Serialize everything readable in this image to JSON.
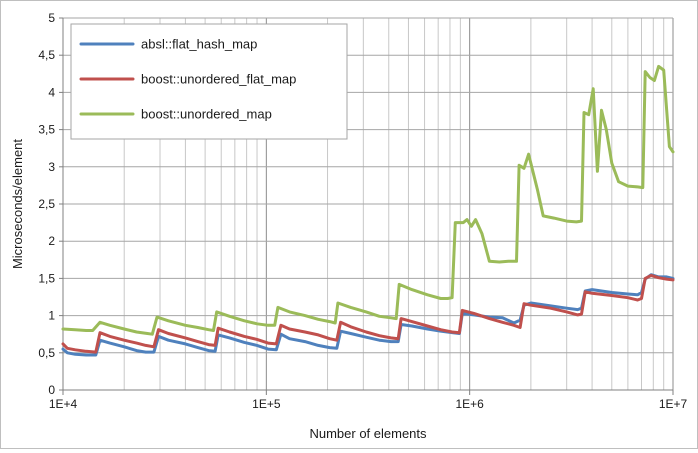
{
  "chart_data": {
    "type": "line",
    "title": "",
    "xlabel": "Number of elements",
    "ylabel": "Microseconds/element",
    "x_scale": "log",
    "xlim": [
      10000,
      10000000
    ],
    "ylim": [
      0,
      5
    ],
    "y_ticks": [
      0,
      0.5,
      1,
      1.5,
      2,
      2.5,
      3,
      3.5,
      4,
      4.5,
      5
    ],
    "y_tick_labels": [
      "0",
      "0,5",
      "1",
      "1,5",
      "2",
      "2,5",
      "3",
      "3,5",
      "4",
      "4,5",
      "5"
    ],
    "x_ticks": [
      10000,
      100000,
      1000000,
      10000000
    ],
    "x_tick_labels": [
      "1E+4",
      "1E+5",
      "1E+6",
      "1E+7"
    ],
    "grid": {
      "horizontal": true,
      "vertical_minor_log": true
    },
    "legend_position": "top-left",
    "series": [
      {
        "name": "absl::flat_hash_map",
        "color": "#4f81bd",
        "points": [
          [
            10000,
            0.55
          ],
          [
            10500,
            0.5
          ],
          [
            11500,
            0.48
          ],
          [
            13000,
            0.47
          ],
          [
            14500,
            0.47
          ],
          [
            15200,
            0.67
          ],
          [
            17000,
            0.63
          ],
          [
            20000,
            0.58
          ],
          [
            23000,
            0.53
          ],
          [
            25500,
            0.51
          ],
          [
            28000,
            0.51
          ],
          [
            29500,
            0.72
          ],
          [
            33000,
            0.67
          ],
          [
            40000,
            0.62
          ],
          [
            46000,
            0.57
          ],
          [
            52000,
            0.53
          ],
          [
            56000,
            0.52
          ],
          [
            58000,
            0.74
          ],
          [
            66000,
            0.7
          ],
          [
            78000,
            0.64
          ],
          [
            90000,
            0.6
          ],
          [
            102000,
            0.55
          ],
          [
            112000,
            0.54
          ],
          [
            118000,
            0.75
          ],
          [
            130000,
            0.69
          ],
          [
            155000,
            0.65
          ],
          [
            180000,
            0.6
          ],
          [
            205000,
            0.57
          ],
          [
            222000,
            0.56
          ],
          [
            232000,
            0.79
          ],
          [
            260000,
            0.76
          ],
          [
            310000,
            0.71
          ],
          [
            360000,
            0.67
          ],
          [
            410000,
            0.65
          ],
          [
            445000,
            0.65
          ],
          [
            460000,
            0.88
          ],
          [
            520000,
            0.86
          ],
          [
            620000,
            0.82
          ],
          [
            720000,
            0.79
          ],
          [
            820000,
            0.77
          ],
          [
            890000,
            0.76
          ],
          [
            920000,
            1.03
          ],
          [
            1050000,
            1.01
          ],
          [
            1250000,
            0.98
          ],
          [
            1450000,
            0.97
          ],
          [
            1650000,
            0.9
          ],
          [
            1770000,
            0.94
          ],
          [
            1850000,
            1.14
          ],
          [
            2000000,
            1.17
          ],
          [
            2500000,
            1.13
          ],
          [
            3000000,
            1.1
          ],
          [
            3400000,
            1.08
          ],
          [
            3550000,
            1.1
          ],
          [
            3700000,
            1.33
          ],
          [
            4000000,
            1.35
          ],
          [
            5000000,
            1.31
          ],
          [
            6000000,
            1.29
          ],
          [
            6700000,
            1.28
          ],
          [
            7000000,
            1.31
          ],
          [
            7300000,
            1.49
          ],
          [
            7800000,
            1.55
          ],
          [
            8500000,
            1.52
          ],
          [
            9300000,
            1.52
          ],
          [
            10000000,
            1.5
          ]
        ]
      },
      {
        "name": "boost::unordered_flat_map",
        "color": "#c0504d",
        "points": [
          [
            10000,
            0.62
          ],
          [
            10500,
            0.56
          ],
          [
            11500,
            0.54
          ],
          [
            13000,
            0.52
          ],
          [
            14500,
            0.51
          ],
          [
            15200,
            0.77
          ],
          [
            17000,
            0.72
          ],
          [
            20000,
            0.67
          ],
          [
            23000,
            0.63
          ],
          [
            25500,
            0.6
          ],
          [
            28000,
            0.58
          ],
          [
            29500,
            0.81
          ],
          [
            33000,
            0.76
          ],
          [
            40000,
            0.7
          ],
          [
            46000,
            0.65
          ],
          [
            52000,
            0.61
          ],
          [
            56000,
            0.6
          ],
          [
            58000,
            0.83
          ],
          [
            66000,
            0.78
          ],
          [
            78000,
            0.72
          ],
          [
            90000,
            0.68
          ],
          [
            102000,
            0.63
          ],
          [
            112000,
            0.62
          ],
          [
            118000,
            0.87
          ],
          [
            130000,
            0.82
          ],
          [
            155000,
            0.78
          ],
          [
            180000,
            0.74
          ],
          [
            205000,
            0.69
          ],
          [
            222000,
            0.67
          ],
          [
            232000,
            0.91
          ],
          [
            260000,
            0.85
          ],
          [
            310000,
            0.78
          ],
          [
            360000,
            0.73
          ],
          [
            410000,
            0.7
          ],
          [
            445000,
            0.69
          ],
          [
            460000,
            0.96
          ],
          [
            520000,
            0.92
          ],
          [
            620000,
            0.86
          ],
          [
            720000,
            0.81
          ],
          [
            820000,
            0.78
          ],
          [
            890000,
            0.77
          ],
          [
            920000,
            1.07
          ],
          [
            1050000,
            1.03
          ],
          [
            1250000,
            0.96
          ],
          [
            1450000,
            0.91
          ],
          [
            1650000,
            0.87
          ],
          [
            1770000,
            0.84
          ],
          [
            1850000,
            1.16
          ],
          [
            2000000,
            1.14
          ],
          [
            2500000,
            1.1
          ],
          [
            3000000,
            1.05
          ],
          [
            3400000,
            1.01
          ],
          [
            3550000,
            1.02
          ],
          [
            3700000,
            1.32
          ],
          [
            4000000,
            1.3
          ],
          [
            5000000,
            1.27
          ],
          [
            6000000,
            1.24
          ],
          [
            6700000,
            1.21
          ],
          [
            7000000,
            1.23
          ],
          [
            7300000,
            1.5
          ],
          [
            7800000,
            1.54
          ],
          [
            8500000,
            1.51
          ],
          [
            9300000,
            1.49
          ],
          [
            10000000,
            1.48
          ]
        ]
      },
      {
        "name": "boost::unordered_map",
        "color": "#9bbb59",
        "points": [
          [
            10000,
            0.82
          ],
          [
            11500,
            0.81
          ],
          [
            13000,
            0.8
          ],
          [
            14000,
            0.8
          ],
          [
            15200,
            0.91
          ],
          [
            17000,
            0.87
          ],
          [
            20000,
            0.82
          ],
          [
            23000,
            0.78
          ],
          [
            26000,
            0.76
          ],
          [
            27500,
            0.75
          ],
          [
            29000,
            0.98
          ],
          [
            33000,
            0.93
          ],
          [
            40000,
            0.87
          ],
          [
            46000,
            0.84
          ],
          [
            52000,
            0.81
          ],
          [
            55000,
            0.8
          ],
          [
            57000,
            1.05
          ],
          [
            66000,
            0.99
          ],
          [
            78000,
            0.93
          ],
          [
            90000,
            0.89
          ],
          [
            102000,
            0.87
          ],
          [
            110000,
            0.87
          ],
          [
            114000,
            1.11
          ],
          [
            130000,
            1.05
          ],
          [
            155000,
            1.0
          ],
          [
            180000,
            0.95
          ],
          [
            205000,
            0.92
          ],
          [
            218000,
            0.9
          ],
          [
            225000,
            1.17
          ],
          [
            260000,
            1.11
          ],
          [
            310000,
            1.05
          ],
          [
            360000,
            0.99
          ],
          [
            410000,
            0.97
          ],
          [
            435000,
            0.96
          ],
          [
            450000,
            1.42
          ],
          [
            520000,
            1.35
          ],
          [
            620000,
            1.28
          ],
          [
            720000,
            1.23
          ],
          [
            780000,
            1.23
          ],
          [
            820000,
            1.24
          ],
          [
            850000,
            2.25
          ],
          [
            930000,
            2.25
          ],
          [
            970000,
            2.29
          ],
          [
            1020000,
            2.2
          ],
          [
            1070000,
            2.29
          ],
          [
            1150000,
            2.1
          ],
          [
            1250000,
            1.73
          ],
          [
            1400000,
            1.72
          ],
          [
            1550000,
            1.73
          ],
          [
            1700000,
            1.73
          ],
          [
            1750000,
            3.02
          ],
          [
            1850000,
            2.98
          ],
          [
            1950000,
            3.17
          ],
          [
            2150000,
            2.7
          ],
          [
            2300000,
            2.34
          ],
          [
            2600000,
            2.31
          ],
          [
            3000000,
            2.27
          ],
          [
            3350000,
            2.26
          ],
          [
            3550000,
            2.27
          ],
          [
            3650000,
            3.73
          ],
          [
            3850000,
            3.7
          ],
          [
            4050000,
            4.05
          ],
          [
            4250000,
            2.94
          ],
          [
            4450000,
            3.76
          ],
          [
            4700000,
            3.5
          ],
          [
            5000000,
            3.05
          ],
          [
            5400000,
            2.8
          ],
          [
            6000000,
            2.74
          ],
          [
            6700000,
            2.73
          ],
          [
            7100000,
            2.72
          ],
          [
            7300000,
            4.28
          ],
          [
            7700000,
            4.2
          ],
          [
            8100000,
            4.16
          ],
          [
            8500000,
            4.35
          ],
          [
            9000000,
            4.3
          ],
          [
            9600000,
            3.27
          ],
          [
            10000000,
            3.2
          ]
        ]
      }
    ]
  }
}
